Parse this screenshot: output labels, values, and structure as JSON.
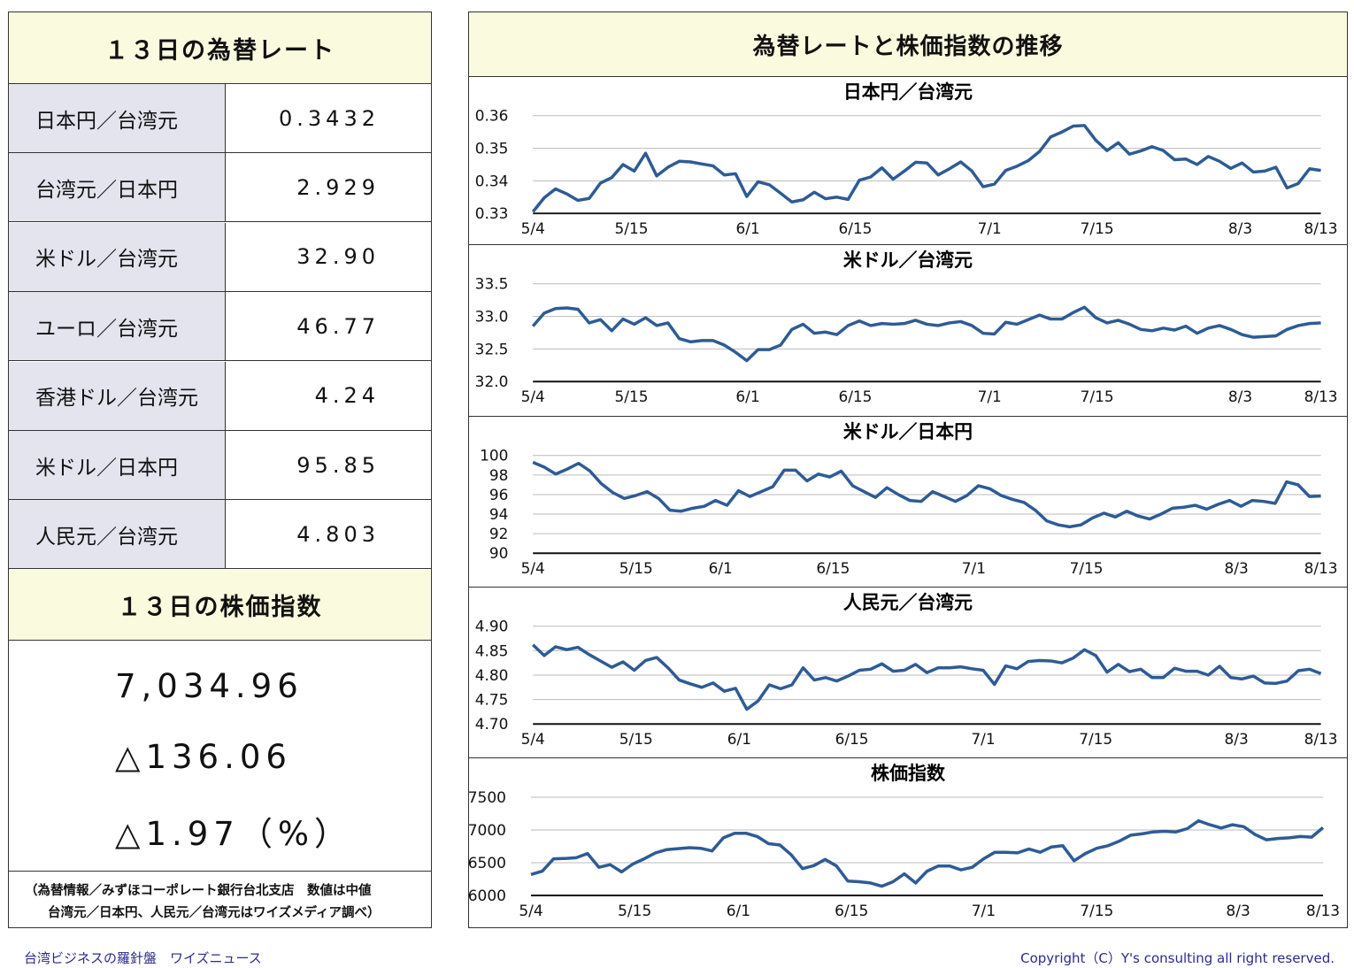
{
  "left": {
    "rates_title": "１３日の為替レート",
    "rates": [
      {
        "name": "日本円／台湾元",
        "value": "0.3432"
      },
      {
        "name": "台湾元／日本円",
        "value": "2.929"
      },
      {
        "name": "米ドル／台湾元",
        "value": "32.90"
      },
      {
        "name": "ユーロ／台湾元",
        "value": "46.77"
      },
      {
        "name": "香港ドル／台湾元",
        "value": "4.24"
      },
      {
        "name": "米ドル／日本円",
        "value": "95.85"
      },
      {
        "name": "人民元／台湾元",
        "value": "4.803"
      }
    ],
    "index_title": "１３日の株価指数",
    "index_value": "7,034.96",
    "index_change": "△136.06",
    "index_change_pct": "△1.97（%）",
    "note_line1": "（為替情報／みずほコーポレート銀行台北支店　数値は中値",
    "note_line2": "台湾元／日本円、人民元／台湾元はワイズメディア調べ）"
  },
  "right": {
    "title": "為替レートと株価指数の推移"
  },
  "footer": {
    "left": "台湾ビジネスの羅針盤　ワイズニュース",
    "right": "Copyright（C）Y's consulting all right reserved."
  },
  "chart_data": [
    {
      "type": "line",
      "title": "日本円／台湾元",
      "x_labels": [
        "5/4",
        "5/15",
        "6/1",
        "6/15",
        "7/1",
        "7/15",
        "8/3",
        "8/13"
      ],
      "x_label_idx": [
        0,
        11,
        24,
        36,
        51,
        63,
        79,
        88
      ],
      "y_ticks": [
        0.33,
        0.34,
        0.35,
        0.36
      ],
      "y_tick_labels": [
        "0.33",
        "0.34",
        "0.35",
        "0.36"
      ],
      "ylim": [
        0.33,
        0.36
      ],
      "color": "#2e5b95",
      "values": [
        0.3305,
        0.3348,
        0.3375,
        0.336,
        0.334,
        0.3346,
        0.3393,
        0.341,
        0.345,
        0.343,
        0.3485,
        0.3415,
        0.3442,
        0.346,
        0.3458,
        0.3452,
        0.3446,
        0.3418,
        0.3422,
        0.3352,
        0.3397,
        0.3388,
        0.3362,
        0.3335,
        0.3342,
        0.3365,
        0.3345,
        0.335,
        0.3343,
        0.3402,
        0.3412,
        0.344,
        0.3405,
        0.343,
        0.3457,
        0.3455,
        0.3418,
        0.3437,
        0.3458,
        0.343,
        0.3382,
        0.339,
        0.3432,
        0.3445,
        0.3462,
        0.349,
        0.3535,
        0.355,
        0.3568,
        0.357,
        0.3525,
        0.3493,
        0.3517,
        0.3482,
        0.3492,
        0.3505,
        0.3493,
        0.3465,
        0.3467,
        0.345,
        0.3475,
        0.346,
        0.3438,
        0.3455,
        0.3427,
        0.343,
        0.3442,
        0.3378,
        0.3392,
        0.3437,
        0.3432
      ]
    },
    {
      "type": "line",
      "title": "米ドル／台湾元",
      "x_labels": [
        "5/4",
        "5/15",
        "6/1",
        "6/15",
        "7/1",
        "7/15",
        "8/3",
        "8/13"
      ],
      "x_label_idx": [
        0,
        11,
        24,
        36,
        51,
        63,
        79,
        88
      ],
      "y_ticks": [
        32.0,
        32.5,
        33.0,
        33.5
      ],
      "y_tick_labels": [
        "32.0",
        "32.5",
        "33.0",
        "33.5"
      ],
      "ylim": [
        32.0,
        33.5
      ],
      "color": "#2e5b95",
      "values": [
        32.85,
        33.05,
        33.12,
        33.13,
        33.11,
        32.9,
        32.95,
        32.78,
        32.96,
        32.88,
        32.98,
        32.86,
        32.9,
        32.66,
        32.61,
        32.63,
        32.63,
        32.56,
        32.45,
        32.32,
        32.49,
        32.49,
        32.56,
        32.8,
        32.88,
        32.74,
        32.76,
        32.72,
        32.86,
        32.93,
        32.86,
        32.89,
        32.88,
        32.89,
        32.94,
        32.88,
        32.86,
        32.9,
        32.92,
        32.86,
        32.74,
        32.73,
        32.91,
        32.88,
        32.95,
        33.02,
        32.96,
        32.96,
        33.06,
        33.14,
        32.98,
        32.9,
        32.94,
        32.88,
        32.8,
        32.78,
        32.82,
        32.79,
        32.85,
        32.74,
        32.82,
        32.86,
        32.8,
        32.72,
        32.68,
        32.69,
        32.7,
        32.8,
        32.86,
        32.89,
        32.9
      ]
    },
    {
      "type": "line",
      "title": "米ドル／日本円",
      "x_labels": [
        "5/4",
        "5/15",
        "6/1",
        "6/15",
        "7/1",
        "7/15",
        "8/3",
        "8/13"
      ],
      "x_label_idx": [
        0,
        11,
        20,
        32,
        47,
        59,
        75,
        84
      ],
      "y_ticks": [
        90,
        92,
        94,
        96,
        98,
        100
      ],
      "y_tick_labels": [
        "90",
        "92",
        "94",
        "96",
        "98",
        "100"
      ],
      "ylim": [
        90,
        100
      ],
      "color": "#2e5b95",
      "values": [
        99.3,
        98.8,
        98.1,
        98.6,
        99.2,
        98.4,
        97.1,
        96.2,
        95.6,
        95.9,
        96.3,
        95.6,
        94.4,
        94.3,
        94.6,
        94.8,
        95.4,
        94.9,
        96.4,
        95.8,
        96.3,
        96.8,
        98.5,
        98.5,
        97.4,
        98.1,
        97.8,
        98.4,
        96.9,
        96.3,
        95.7,
        96.7,
        96.0,
        95.4,
        95.3,
        96.3,
        95.8,
        95.3,
        95.9,
        96.9,
        96.6,
        95.9,
        95.5,
        95.2,
        94.4,
        93.3,
        92.9,
        92.7,
        92.9,
        93.6,
        94.1,
        93.7,
        94.3,
        93.8,
        93.5,
        94.0,
        94.6,
        94.7,
        94.9,
        94.5,
        95.0,
        95.4,
        94.8,
        95.4,
        95.3,
        95.1,
        97.3,
        97.0,
        95.8,
        95.85
      ]
    },
    {
      "type": "line",
      "title": "人民元／台湾元",
      "x_labels": [
        "5/4",
        "5/15",
        "6/1",
        "6/15",
        "7/1",
        "7/15",
        "8/3",
        "8/13"
      ],
      "x_label_idx": [
        0,
        11,
        22,
        34,
        48,
        60,
        75,
        84
      ],
      "y_ticks": [
        4.7,
        4.75,
        4.8,
        4.85,
        4.9
      ],
      "y_tick_labels": [
        "4.70",
        "4.75",
        "4.80",
        "4.85",
        "4.90"
      ],
      "ylim": [
        4.7,
        4.9
      ],
      "color": "#2e5b95",
      "values": [
        4.862,
        4.84,
        4.858,
        4.852,
        4.857,
        4.842,
        4.829,
        4.816,
        4.827,
        4.81,
        4.83,
        4.836,
        4.815,
        4.79,
        4.782,
        4.775,
        4.784,
        4.767,
        4.773,
        4.73,
        4.747,
        4.78,
        4.772,
        4.78,
        4.815,
        4.79,
        4.795,
        4.788,
        4.798,
        4.81,
        4.812,
        4.823,
        4.808,
        4.81,
        4.822,
        4.805,
        4.815,
        4.815,
        4.817,
        4.813,
        4.81,
        4.781,
        4.819,
        4.813,
        4.828,
        4.83,
        4.829,
        4.825,
        4.835,
        4.852,
        4.84,
        4.806,
        4.822,
        4.807,
        4.812,
        4.795,
        4.795,
        4.814,
        4.808,
        4.808,
        4.8,
        4.818,
        4.795,
        4.792,
        4.798,
        4.784,
        4.783,
        4.788,
        4.809,
        4.812,
        4.803
      ]
    },
    {
      "type": "line",
      "title": "株価指数",
      "x_labels": [
        "5/4",
        "5/15",
        "6/1",
        "6/15",
        "7/1",
        "7/15",
        "8/3",
        "8/13"
      ],
      "x_label_idx": [
        0,
        11,
        22,
        34,
        48,
        60,
        75,
        84
      ],
      "y_ticks": [
        6000,
        6500,
        7000,
        7500
      ],
      "y_tick_labels": [
        "6000",
        "6500",
        "7000",
        "7500"
      ],
      "ylim": [
        6000,
        7500
      ],
      "color": "#2e5b95",
      "values": [
        6320,
        6370,
        6560,
        6565,
        6575,
        6640,
        6430,
        6470,
        6360,
        6480,
        6560,
        6650,
        6700,
        6715,
        6730,
        6720,
        6680,
        6880,
        6950,
        6950,
        6900,
        6790,
        6770,
        6620,
        6410,
        6455,
        6550,
        6450,
        6220,
        6210,
        6190,
        6140,
        6210,
        6330,
        6190,
        6370,
        6450,
        6450,
        6390,
        6430,
        6560,
        6660,
        6660,
        6650,
        6710,
        6660,
        6740,
        6760,
        6530,
        6640,
        6720,
        6760,
        6830,
        6920,
        6940,
        6970,
        6980,
        6970,
        7020,
        7140,
        7080,
        7030,
        7080,
        7050,
        6930,
        6850,
        6870,
        6880,
        6900,
        6890,
        7035
      ]
    }
  ]
}
